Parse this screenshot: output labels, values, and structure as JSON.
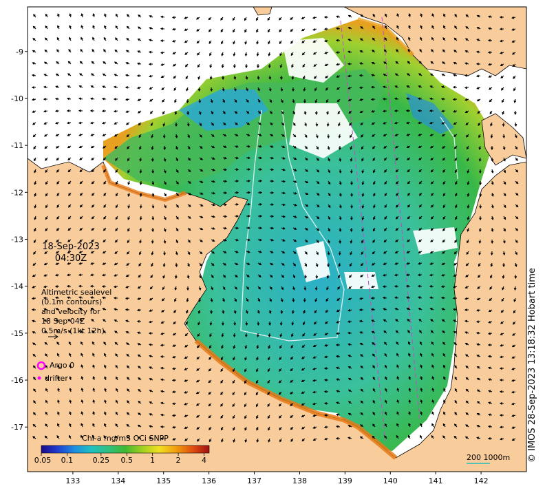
{
  "map": {
    "x_ticks": [
      "133",
      "134",
      "135",
      "136",
      "137",
      "138",
      "139",
      "140",
      "141",
      "142"
    ],
    "x_tick_values": [
      133,
      134,
      135,
      136,
      137,
      138,
      139,
      140,
      141,
      142
    ],
    "y_ticks": [
      "-9",
      "-10",
      "-11",
      "-12",
      "-13",
      "-14",
      "-15",
      "-16",
      "-17"
    ],
    "y_tick_values": [
      -9,
      -10,
      -11,
      -12,
      -13,
      -14,
      -15,
      -16,
      -17
    ],
    "lon_range": [
      132.0,
      143.0
    ],
    "lat_range": [
      -17.95,
      -8.05
    ],
    "colors": {
      "land": "#f9cc9b",
      "coast_line": "#000000",
      "cloud": "#ffffff",
      "argo": "#ff00ff",
      "track": "#cc44cc",
      "contour": "#d9f0f0"
    }
  },
  "date": {
    "day": "18-Sep-2023",
    "time": "04:30Z"
  },
  "legend": {
    "altimetry_lines": [
      "Altimetric sealevel",
      "(0.1m contours)",
      "and velocity for",
      "18 Sep 04Z",
      "0.5m/s (1kt 12h)"
    ],
    "argo_label": "Argo 0",
    "drifter_label": "drifter"
  },
  "colorbar": {
    "title": "Chl-a mg/m3 OCi SNPP",
    "tick_labels": [
      "0.05",
      "0.1",
      "0.25",
      "0.5",
      "1",
      "2",
      "4"
    ],
    "tick_values": [
      0.05,
      0.1,
      0.25,
      0.5,
      1,
      2,
      4
    ],
    "colors": [
      "#1a0a8c",
      "#1f3fd0",
      "#1e90e0",
      "#20c0c0",
      "#30c080",
      "#40b830",
      "#a0d020",
      "#f0e020",
      "#f0a010",
      "#e05010",
      "#a01010"
    ]
  },
  "scale": {
    "label": "200  1000m"
  },
  "credit": "© IMOS 28-Sep-2023 13:18:32 Hobart time"
}
